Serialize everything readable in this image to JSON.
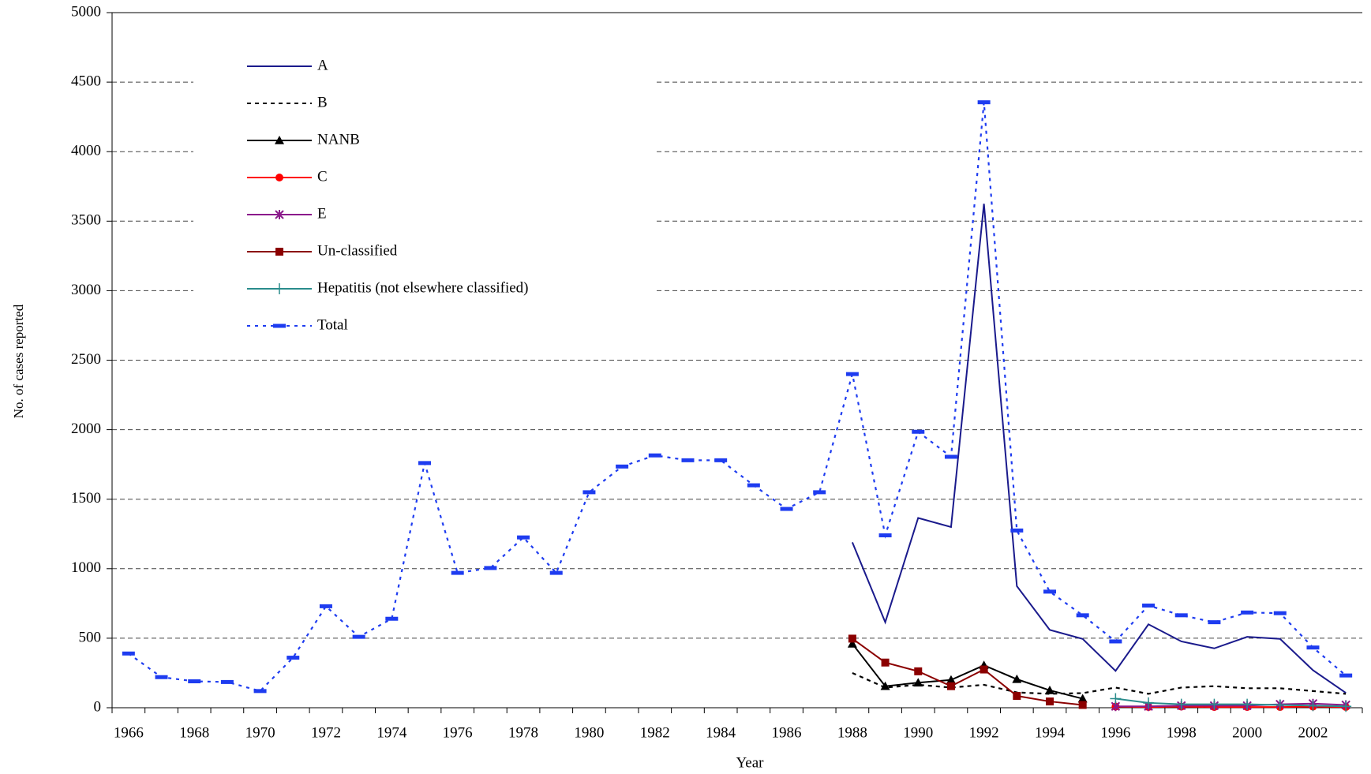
{
  "chart_data": {
    "type": "line",
    "x_label": "Year",
    "y_label": "No. of cases reported",
    "categories": [
      "1966",
      null,
      "1968",
      null,
      "1970",
      null,
      "1972",
      null,
      "1974",
      null,
      "1976",
      null,
      "1978",
      null,
      "1980",
      null,
      "1982",
      null,
      "1984",
      null,
      "1986",
      null,
      "1988",
      null,
      "1990",
      null,
      "1992",
      null,
      "1994",
      null,
      "1996",
      null,
      "1998",
      null,
      "2000",
      null,
      "2002",
      null
    ],
    "ylim": [
      0,
      5000
    ],
    "yticks": [
      0,
      500,
      1000,
      1500,
      2000,
      2500,
      3000,
      3500,
      4000,
      4500,
      5000
    ],
    "grid": true,
    "series": [
      {
        "name": "A",
        "color": "#1a1a8c",
        "line_style": "solid",
        "marker": "none",
        "values": [
          null,
          null,
          null,
          null,
          null,
          null,
          null,
          null,
          null,
          null,
          null,
          null,
          null,
          null,
          null,
          null,
          null,
          null,
          null,
          null,
          null,
          null,
          1190,
          615,
          1365,
          1300,
          3625,
          875,
          560,
          495,
          265,
          600,
          477,
          427,
          510,
          495,
          270,
          107
        ]
      },
      {
        "name": "B",
        "color": "#000000",
        "line_style": "dashed",
        "marker": "none",
        "values": [
          null,
          null,
          null,
          null,
          null,
          null,
          null,
          null,
          null,
          null,
          null,
          null,
          null,
          null,
          null,
          null,
          null,
          null,
          null,
          null,
          null,
          null,
          250,
          145,
          165,
          145,
          165,
          110,
          100,
          105,
          145,
          100,
          145,
          155,
          140,
          140,
          120,
          100
        ]
      },
      {
        "name": "NANB",
        "color": "#000000",
        "line_style": "solid",
        "marker": "triangle",
        "values": [
          null,
          null,
          null,
          null,
          null,
          null,
          null,
          null,
          null,
          null,
          null,
          null,
          null,
          null,
          null,
          null,
          null,
          null,
          null,
          null,
          null,
          null,
          460,
          155,
          180,
          200,
          305,
          205,
          125,
          65,
          null,
          null,
          null,
          null,
          null,
          null,
          null,
          null
        ]
      },
      {
        "name": "C",
        "color": "#ff0000",
        "line_style": "solid",
        "marker": "circle",
        "values": [
          null,
          null,
          null,
          null,
          null,
          null,
          null,
          null,
          null,
          null,
          null,
          null,
          null,
          null,
          null,
          null,
          null,
          null,
          null,
          null,
          null,
          null,
          null,
          null,
          null,
          null,
          null,
          null,
          null,
          null,
          8,
          5,
          8,
          5,
          5,
          5,
          8,
          5
        ]
      },
      {
        "name": "E",
        "color": "#8b1a8b",
        "line_style": "solid",
        "marker": "asterisk",
        "values": [
          null,
          null,
          null,
          null,
          null,
          null,
          null,
          null,
          null,
          null,
          null,
          null,
          null,
          null,
          null,
          null,
          null,
          null,
          null,
          null,
          null,
          null,
          null,
          null,
          null,
          null,
          null,
          null,
          null,
          null,
          10,
          10,
          15,
          15,
          15,
          25,
          30,
          20
        ]
      },
      {
        "name": "Un-classified",
        "color": "#8b0000",
        "line_style": "solid",
        "marker": "square",
        "values": [
          null,
          null,
          null,
          null,
          null,
          null,
          null,
          null,
          null,
          null,
          null,
          null,
          null,
          null,
          null,
          null,
          null,
          null,
          null,
          null,
          null,
          null,
          497,
          325,
          262,
          155,
          275,
          85,
          45,
          20,
          null,
          null,
          null,
          null,
          null,
          null,
          null,
          null
        ]
      },
      {
        "name": "Hepatitis (not elsewhere classified)",
        "color": "#2a8c8c",
        "line_style": "solid",
        "marker": "plus",
        "values": [
          null,
          null,
          null,
          null,
          null,
          null,
          null,
          null,
          null,
          null,
          null,
          null,
          null,
          null,
          null,
          null,
          null,
          null,
          null,
          null,
          null,
          null,
          null,
          null,
          null,
          null,
          null,
          null,
          null,
          null,
          65,
          35,
          25,
          25,
          25,
          20,
          15,
          10
        ]
      },
      {
        "name": "Total",
        "color": "#1e3cf0",
        "line_style": "dotted",
        "marker": "dash",
        "values": [
          390,
          220,
          190,
          185,
          120,
          360,
          730,
          510,
          640,
          1760,
          970,
          1005,
          1225,
          970,
          1550,
          1735,
          1815,
          1780,
          1780,
          1600,
          1430,
          1550,
          2400,
          1240,
          1985,
          1805,
          4355,
          1275,
          835,
          665,
          477,
          735,
          665,
          615,
          685,
          680,
          433,
          232
        ]
      }
    ]
  }
}
